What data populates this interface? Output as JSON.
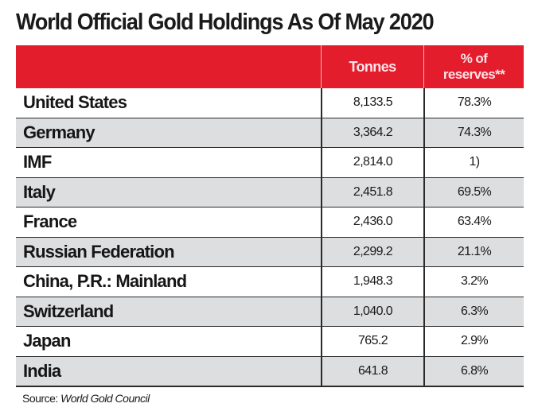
{
  "chart_data": {
    "type": "table",
    "title": "World Official Gold Holdings As Of May 2020",
    "columns": [
      "",
      "Tonnes",
      "% of reserves**"
    ],
    "rows": [
      {
        "country": "United States",
        "tonnes": "8,133.5",
        "pct_reserves": "78.3%"
      },
      {
        "country": "Germany",
        "tonnes": "3,364.2",
        "pct_reserves": "74.3%"
      },
      {
        "country": "IMF",
        "tonnes": "2,814.0",
        "pct_reserves": "1)"
      },
      {
        "country": "Italy",
        "tonnes": "2,451.8",
        "pct_reserves": "69.5%"
      },
      {
        "country": "France",
        "tonnes": "2,436.0",
        "pct_reserves": "63.4%"
      },
      {
        "country": "Russian Federation",
        "tonnes": "2,299.2",
        "pct_reserves": "21.1%"
      },
      {
        "country": "China, P.R.: Mainland",
        "tonnes": "1,948.3",
        "pct_reserves": "3.2%"
      },
      {
        "country": "Switzerland",
        "tonnes": "1,040.0",
        "pct_reserves": "6.3%"
      },
      {
        "country": "Japan",
        "tonnes": "765.2",
        "pct_reserves": "2.9%"
      },
      {
        "country": "India",
        "tonnes": "641.8",
        "pct_reserves": "6.8%"
      }
    ],
    "source_label": "Source:",
    "source": "World Gold Council"
  },
  "header": {
    "tonnes": "Tonnes",
    "pct_line1": "% of",
    "pct_line2": "reserves**"
  },
  "colors": {
    "header_bg": "#e31d2b",
    "header_text": "#ffe4ea",
    "shaded_row": "#dddedf"
  }
}
